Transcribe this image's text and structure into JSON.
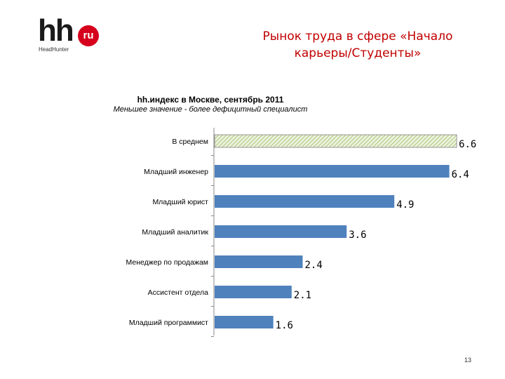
{
  "logo": {
    "mark": "hh",
    "badge": "ru",
    "subtitle": "HeadHunter"
  },
  "slide_title_line1": "Рынок труда в сфере «Начало",
  "slide_title_line2": "карьеры/Студенты»",
  "page_number": "13",
  "chart_data": {
    "type": "bar",
    "orientation": "horizontal",
    "title": "hh.индекс в Москве, сентябрь 2011",
    "subtitle": "Меньшее значение - более дефицитный специалист",
    "categories": [
      "В среднем",
      "Младший инженер",
      "Младший юрист",
      "Младший аналитик",
      "Менеджер по продажам",
      "Ассистент отдела",
      "Младший программист"
    ],
    "values": [
      6.6,
      6.4,
      4.9,
      3.6,
      2.4,
      2.1,
      1.6
    ],
    "value_labels": [
      "6.6",
      "6.4",
      "4.9",
      "3.6",
      "2.4",
      "2.1",
      "1.6"
    ],
    "xlim": [
      0,
      7
    ],
    "grid": false,
    "colors": {
      "bar": "#4f81bd",
      "average_fill": "#ebf1de",
      "average_hatch": "#9bbb59"
    }
  }
}
